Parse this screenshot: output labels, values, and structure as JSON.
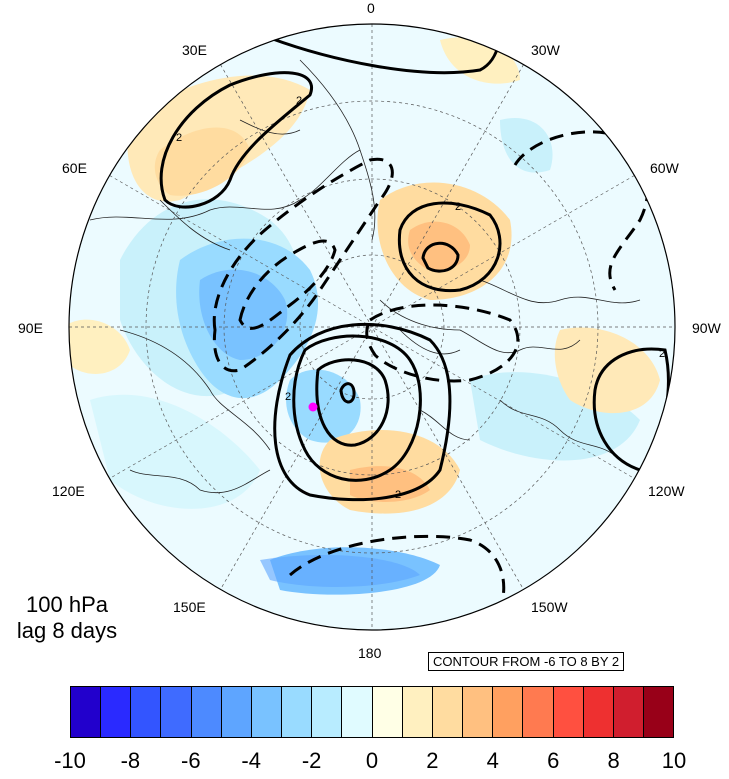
{
  "map": {
    "projection": "north-polar-stereographic",
    "center_marker_color": "#ff00ff",
    "longitude_labels": [
      "0",
      "30W",
      "60W",
      "90W",
      "120W",
      "150W",
      "180",
      "150E",
      "120E",
      "90E",
      "60E",
      "30E"
    ]
  },
  "title": {
    "line1": "100 hPa",
    "line2": "lag 8 days"
  },
  "contour_info": "CONTOUR FROM -6 TO 8 BY 2",
  "contour_label": "2",
  "colorbar": {
    "colors": [
      "#2200cc",
      "#2a2aff",
      "#3355ff",
      "#3f6bff",
      "#4d8aff",
      "#5ea5ff",
      "#79c2ff",
      "#99dbff",
      "#b8ecff",
      "#e0fbff",
      "#ffffe6",
      "#fff0c0",
      "#ffdca0",
      "#ffc080",
      "#ffa060",
      "#ff7a50",
      "#ff5040",
      "#ee3030",
      "#d01e2e",
      "#980018"
    ],
    "labels": [
      "-10",
      "-8",
      "-6",
      "-4",
      "-2",
      "0",
      "2",
      "4",
      "6",
      "8",
      "10"
    ]
  }
}
